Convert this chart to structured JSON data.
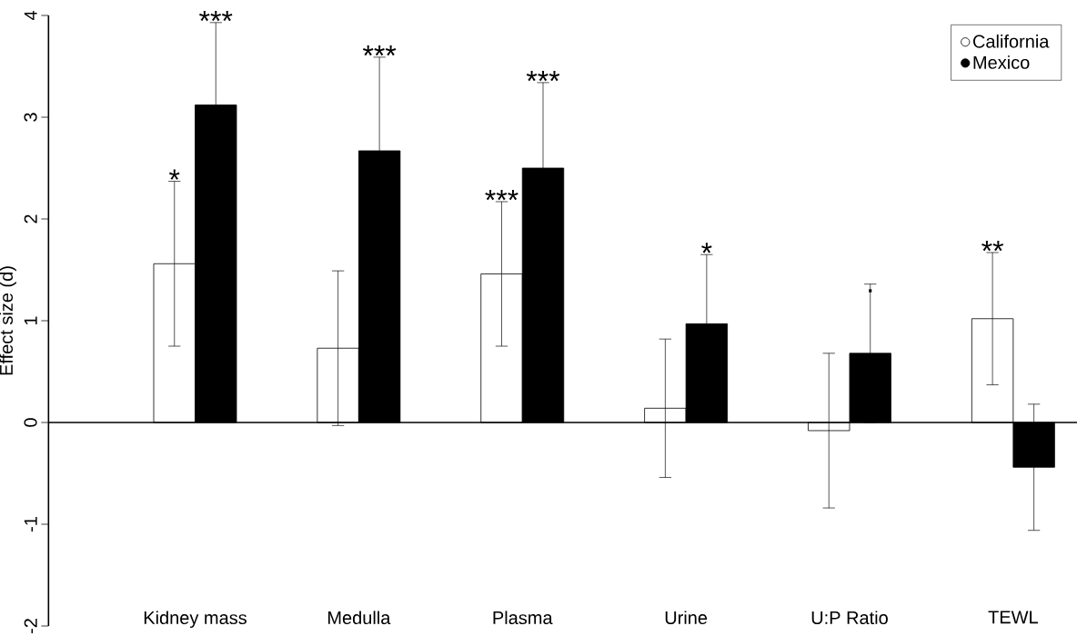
{
  "chart_data": {
    "type": "bar",
    "ylabel": "Effect size (d)",
    "categories": [
      "Kidney mass",
      "Medulla",
      "Plasma",
      "Urine",
      "U:P Ratio",
      "TEWL"
    ],
    "series": [
      {
        "name": "California",
        "color": "#ffffff",
        "values": [
          1.56,
          0.73,
          1.46,
          0.14,
          -0.08,
          1.02
        ],
        "errors": [
          0.81,
          0.76,
          0.71,
          0.68,
          0.76,
          0.65
        ]
      },
      {
        "name": "Mexico",
        "color": "#000000",
        "values": [
          3.12,
          2.67,
          2.5,
          0.97,
          0.68,
          -0.44
        ],
        "errors": [
          0.81,
          0.92,
          0.84,
          0.68,
          0.68,
          0.62
        ]
      }
    ],
    "ylim": [
      -2,
      4
    ],
    "yticks": [
      -2,
      -1,
      0,
      1,
      2,
      3,
      4
    ],
    "ref_lines": [
      {
        "axis": "y",
        "value": 0
      }
    ],
    "annotations": [
      "*",
      "***",
      "***",
      "***",
      "***",
      "*",
      ".",
      "**"
    ],
    "legend": "top right",
    "grid": false
  }
}
